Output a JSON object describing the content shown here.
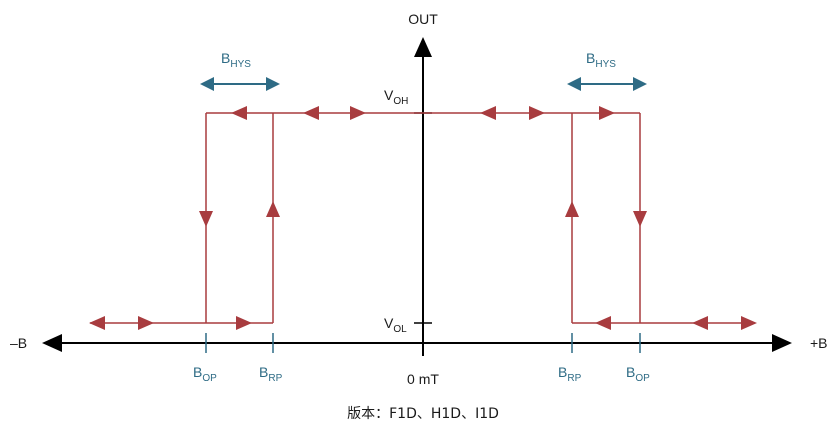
{
  "labels": {
    "out_axis": "OUT",
    "neg_b": "–B",
    "pos_b": "+B",
    "origin": "0 mT",
    "voh_main": "V",
    "voh_sub": "OH",
    "vol_main": "V",
    "vol_sub": "OL",
    "bop_main": "B",
    "bop_sub": "OP",
    "brp_main": "B",
    "brp_sub": "RP",
    "bhys_main": "B",
    "bhys_sub": "HYS"
  },
  "caption": "版本：F1D、H1D、I1D",
  "colors": {
    "curve": "#a83c3f",
    "label_blue": "#2e6b85",
    "axis": "#000000"
  }
}
